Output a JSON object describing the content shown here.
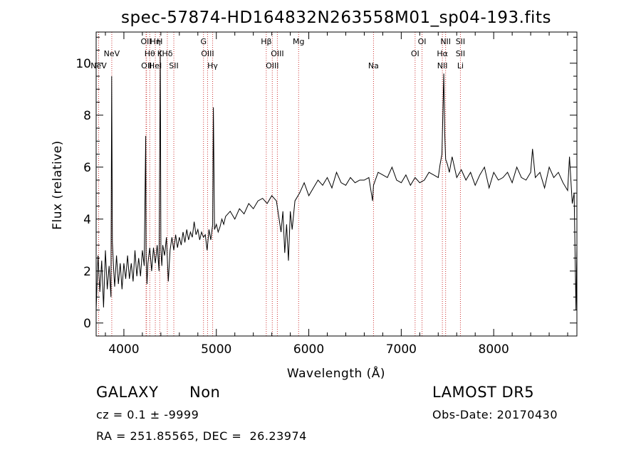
{
  "chart_data": {
    "type": "line",
    "title": "spec-57874-HD164832N263558M01_sp04-193.fits",
    "xlabel": "Wavelength (Å)",
    "ylabel": "Flux (relative)",
    "xlim": [
      3700,
      8900
    ],
    "ylim": [
      -0.5,
      11.2
    ],
    "x_ticks": [
      4000,
      5000,
      6000,
      7000,
      8000
    ],
    "y_ticks": [
      0,
      2,
      4,
      6,
      8,
      10
    ],
    "x_tick_labels": [
      "4000",
      "5000",
      "6000",
      "7000",
      "8000"
    ],
    "y_tick_labels": [
      "0",
      "2",
      "4",
      "6",
      "8",
      "10"
    ],
    "grid": false,
    "line_color": "#000000",
    "marker_color": "#cc3333",
    "series": [
      {
        "x": [
          3700,
          3720,
          3740,
          3760,
          3780,
          3800,
          3820,
          3840,
          3860,
          3868,
          3876,
          3890,
          3900,
          3920,
          3940,
          3960,
          3980,
          4000,
          4020,
          4040,
          4060,
          4080,
          4100,
          4120,
          4140,
          4160,
          4180,
          4200,
          4220,
          4236,
          4240,
          4250,
          4260,
          4280,
          4300,
          4320,
          4340,
          4360,
          4380,
          4394,
          4400,
          4410,
          4420,
          4440,
          4460,
          4480,
          4500,
          4520,
          4540,
          4560,
          4580,
          4600,
          4620,
          4640,
          4660,
          4680,
          4700,
          4720,
          4740,
          4760,
          4780,
          4800,
          4820,
          4840,
          4860,
          4880,
          4900,
          4920,
          4940,
          4960,
          4968,
          4980,
          5000,
          5020,
          5040,
          5060,
          5080,
          5100,
          5150,
          5200,
          5250,
          5300,
          5350,
          5400,
          5450,
          5500,
          5550,
          5600,
          5650,
          5700,
          5720,
          5740,
          5760,
          5780,
          5800,
          5820,
          5850,
          5900,
          5950,
          6000,
          6050,
          6100,
          6150,
          6200,
          6250,
          6300,
          6350,
          6400,
          6450,
          6500,
          6550,
          6600,
          6650,
          6690,
          6700,
          6720,
          6750,
          6800,
          6850,
          6900,
          6950,
          7000,
          7050,
          7100,
          7150,
          7200,
          7250,
          7300,
          7350,
          7400,
          7420,
          7440,
          7460,
          7470,
          7480,
          7500,
          7520,
          7550,
          7600,
          7650,
          7700,
          7750,
          7800,
          7850,
          7900,
          7950,
          8000,
          8050,
          8100,
          8150,
          8200,
          8250,
          8300,
          8350,
          8400,
          8420,
          8450,
          8500,
          8550,
          8600,
          8650,
          8700,
          8750,
          8800,
          8820,
          8850,
          8870,
          8890,
          8900
        ],
        "y": [
          0.5,
          2.6,
          1.2,
          2.4,
          0.6,
          2.8,
          1.3,
          2.2,
          1.0,
          9.5,
          3.1,
          2.0,
          1.4,
          2.6,
          1.5,
          2.3,
          1.3,
          2.3,
          1.7,
          2.6,
          1.7,
          2.3,
          1.6,
          2.8,
          1.8,
          2.5,
          1.8,
          2.8,
          2.2,
          7.2,
          2.6,
          1.5,
          2.3,
          2.9,
          2.0,
          2.9,
          2.3,
          3.0,
          2.0,
          10.5,
          2.8,
          2.2,
          3.0,
          2.6,
          3.3,
          1.6,
          2.8,
          3.3,
          2.8,
          3.4,
          2.9,
          3.3,
          3.0,
          3.5,
          3.1,
          3.6,
          3.2,
          3.5,
          3.3,
          3.9,
          3.4,
          3.6,
          3.2,
          3.5,
          3.3,
          3.4,
          2.8,
          3.6,
          3.2,
          3.8,
          8.3,
          3.6,
          3.8,
          3.5,
          3.7,
          4.0,
          3.8,
          4.1,
          4.3,
          4.0,
          4.4,
          4.2,
          4.6,
          4.4,
          4.7,
          4.8,
          4.6,
          4.9,
          4.7,
          3.5,
          4.3,
          2.7,
          3.8,
          2.4,
          4.3,
          3.6,
          4.7,
          5.0,
          5.4,
          4.9,
          5.2,
          5.5,
          5.3,
          5.6,
          5.2,
          5.8,
          5.4,
          5.3,
          5.6,
          5.4,
          5.5,
          5.5,
          5.6,
          4.7,
          5.3,
          5.5,
          5.8,
          5.7,
          5.6,
          6.0,
          5.5,
          5.4,
          5.7,
          5.3,
          5.6,
          5.4,
          5.5,
          5.8,
          5.7,
          5.6,
          6.1,
          6.5,
          9.6,
          7.3,
          6.3,
          6.1,
          5.8,
          6.4,
          5.6,
          5.9,
          5.5,
          5.8,
          5.3,
          5.7,
          6.0,
          5.2,
          5.8,
          5.5,
          5.6,
          5.8,
          5.4,
          6.0,
          5.6,
          5.5,
          5.8,
          6.7,
          5.6,
          5.8,
          5.2,
          6.0,
          5.6,
          5.8,
          5.4,
          5.1,
          6.4,
          4.6,
          5.0,
          0.5,
          3.0
        ]
      }
    ],
    "lines": [
      {
        "wl": 3727,
        "labels": [
          "NeV"
        ],
        "rows": [
          3
        ]
      },
      {
        "wl": 3869,
        "labels": [
          "NeV"
        ],
        "rows": [
          2
        ]
      },
      {
        "wl": 4240,
        "labels": [
          "OII"
        ],
        "rows": [
          1
        ]
      },
      {
        "wl": 4245,
        "labels": [
          "OII"
        ],
        "rows": [
          3
        ]
      },
      {
        "wl": 4280,
        "labels": [
          "Hθ"
        ],
        "rows": [
          2
        ]
      },
      {
        "wl": 4340,
        "labels": [
          "Hη",
          "HeI"
        ],
        "rows": [
          1,
          3
        ]
      },
      {
        "wl": 4388,
        "labels": [
          "H",
          "K"
        ],
        "rows": [
          1,
          2
        ]
      },
      {
        "wl": 4470,
        "labels": [
          "Hδ"
        ],
        "rows": [
          2
        ]
      },
      {
        "wl": 4540,
        "labels": [
          "SII"
        ],
        "rows": [
          3
        ]
      },
      {
        "wl": 4861,
        "labels": [
          "G"
        ],
        "rows": [
          1
        ]
      },
      {
        "wl": 4905,
        "labels": [
          "OIII"
        ],
        "rows": [
          2
        ]
      },
      {
        "wl": 4960,
        "labels": [
          "Hγ"
        ],
        "rows": [
          3
        ]
      },
      {
        "wl": 5540,
        "labels": [
          "Hβ"
        ],
        "rows": [
          1
        ]
      },
      {
        "wl": 5660,
        "labels": [
          "OIII"
        ],
        "rows": [
          2
        ]
      },
      {
        "wl": 5605,
        "labels": [
          "OIII"
        ],
        "rows": [
          3
        ]
      },
      {
        "wl": 5890,
        "labels": [
          "Mg"
        ],
        "rows": [
          1
        ]
      },
      {
        "wl": 6700,
        "labels": [
          "Na"
        ],
        "rows": [
          3
        ]
      },
      {
        "wl": 7150,
        "labels": [
          "OI"
        ],
        "rows": [
          2
        ]
      },
      {
        "wl": 7225,
        "labels": [
          "OI"
        ],
        "rows": [
          1
        ]
      },
      {
        "wl": 7445,
        "labels": [
          "Hα",
          "NII"
        ],
        "rows": [
          2,
          3
        ]
      },
      {
        "wl": 7480,
        "labels": [
          "NII"
        ],
        "rows": [
          1
        ]
      },
      {
        "wl": 7640,
        "labels": [
          "SII",
          "SII",
          "Li"
        ],
        "rows": [
          1,
          2,
          3
        ]
      }
    ]
  },
  "info": {
    "class_label": "GALAXY",
    "subclass_label": "Non",
    "cz_text": "cz = 0.1 ± -9999",
    "coords_text": "RA = 251.85565, DEC =  26.23974",
    "survey_label": "LAMOST DR5",
    "obs_date": "Obs-Date: 20170430"
  }
}
